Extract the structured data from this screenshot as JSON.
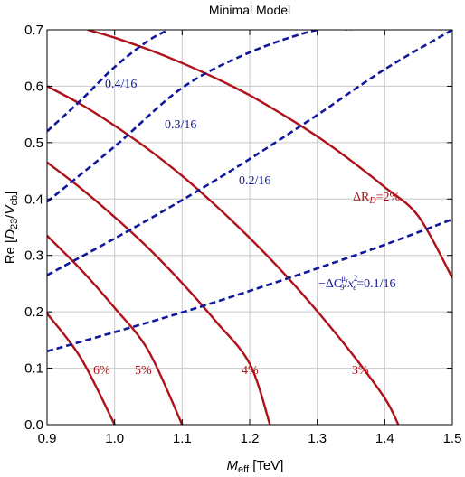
{
  "chart_data": {
    "type": "line",
    "title": "Minimal Model",
    "xlabel_main": "M",
    "xlabel_sub": "eff",
    "xlabel_unit": " [TeV]",
    "ylabel_pre": "Re [",
    "ylabel_d": "D",
    "ylabel_d_sub": "23",
    "ylabel_slash": "/",
    "ylabel_v": "V",
    "ylabel_v_sub": "cb",
    "ylabel_post": "]",
    "xlim": [
      0.9,
      1.5
    ],
    "ylim": [
      0.0,
      0.7
    ],
    "xticks": [
      "0.9",
      "1.0",
      "1.1",
      "1.2",
      "1.3",
      "1.4",
      "1.5"
    ],
    "yticks": [
      "0.0",
      "0.1",
      "0.2",
      "0.3",
      "0.4",
      "0.5",
      "0.6",
      "0.7"
    ],
    "grid": true,
    "colors": {
      "red": "#b0121b",
      "blue": "#10189c",
      "grid": "#c8c8c8"
    },
    "red_series": [
      {
        "label": "ΔR_D=2%",
        "x": [
          0.96,
          1.0,
          1.05,
          1.1,
          1.15,
          1.2,
          1.25,
          1.3,
          1.35,
          1.4,
          1.45,
          1.5
        ],
        "y": [
          0.7,
          0.686,
          0.665,
          0.641,
          0.614,
          0.584,
          0.549,
          0.511,
          0.468,
          0.421,
          0.369,
          0.26
        ]
      },
      {
        "label": "3%",
        "x": [
          0.9,
          0.95,
          1.0,
          1.05,
          1.1,
          1.15,
          1.2,
          1.25,
          1.3,
          1.35,
          1.4,
          1.42
        ],
        "y": [
          0.6,
          0.568,
          0.53,
          0.488,
          0.441,
          0.388,
          0.331,
          0.269,
          0.201,
          0.128,
          0.047,
          0.0
        ]
      },
      {
        "label": "4%",
        "x": [
          0.9,
          0.95,
          1.0,
          1.05,
          1.1,
          1.15,
          1.2,
          1.23
        ],
        "y": [
          0.465,
          0.419,
          0.368,
          0.313,
          0.251,
          0.183,
          0.108,
          0.0
        ]
      },
      {
        "label": "5%",
        "x": [
          0.9,
          0.95,
          1.0,
          1.05,
          1.1
        ],
        "y": [
          0.335,
          0.275,
          0.207,
          0.131,
          0.0
        ]
      },
      {
        "label": "6%",
        "x": [
          0.9,
          0.95,
          1.0
        ],
        "y": [
          0.197,
          0.118,
          0.0
        ]
      }
    ],
    "blue_series": [
      {
        "label": "0.1/16",
        "x": [
          0.9,
          1.0,
          1.1,
          1.2,
          1.3,
          1.4,
          1.5
        ],
        "y": [
          0.13,
          0.164,
          0.199,
          0.237,
          0.277,
          0.319,
          0.364
        ]
      },
      {
        "label": "0.2/16",
        "x": [
          0.9,
          1.0,
          1.1,
          1.2,
          1.3,
          1.4,
          1.5
        ],
        "y": [
          0.265,
          0.33,
          0.398,
          0.471,
          0.549,
          0.63,
          0.7
        ]
      },
      {
        "label": "0.3/16",
        "x": [
          0.9,
          1.0,
          1.1,
          1.2,
          1.3,
          1.35
        ],
        "y": [
          0.395,
          0.493,
          0.597,
          0.66,
          0.7,
          0.7
        ]
      },
      {
        "label": "0.4/16",
        "x": [
          0.9,
          0.95,
          1.0,
          1.05,
          1.08
        ],
        "y": [
          0.52,
          0.575,
          0.634,
          0.681,
          0.7
        ]
      }
    ],
    "annotations": {
      "dr_delta": "ΔR",
      "dr_sub": "D",
      "dr_rest": "=2%",
      "p3": "3%",
      "p4": "4%",
      "p5": "5%",
      "p6": "6%",
      "c_minus": "−ΔC",
      "c_sup": "μ",
      "c_sub": "9",
      "c_slash": "/",
      "c_x": "x",
      "c_x_sup": "2",
      "c_x_sub": "e",
      "c_rest": "=0.1/16",
      "b02": "0.2/16",
      "b03": "0.3/16",
      "b04": "0.4/16"
    }
  }
}
